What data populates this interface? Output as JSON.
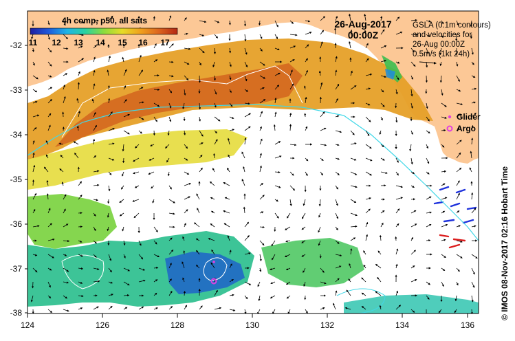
{
  "colorbar": {
    "title": "4h comp, p50, all sats",
    "ticks": [
      "11",
      "12",
      "13",
      "14",
      "15",
      "16",
      "17"
    ],
    "colors": [
      "#1e1ea0",
      "#1e5adc",
      "#1eb4e6",
      "#28d2a0",
      "#8cdc3c",
      "#e6dc28",
      "#f0a01e",
      "#dc641e",
      "#b42814"
    ]
  },
  "timestamp": {
    "date": "26-Aug-2017",
    "time": "00:00Z"
  },
  "gsla_note": {
    "lines": [
      "GSLA (0.1m contours)",
      "and velocities for",
      "26-Aug 00:00Z",
      "0.5m/s (1kt 24h)"
    ]
  },
  "legend": {
    "glider": {
      "label": "Glider",
      "color": "#e040e0"
    },
    "argo": {
      "label": "Argo",
      "color": "#e040e0"
    }
  },
  "credit": "© IMOS 08-Nov-2017 02:16 Hobart Time",
  "axes": {
    "x_ticks": [
      "124",
      "126",
      "128",
      "130",
      "132",
      "134",
      "136"
    ],
    "y_ticks": [
      "-32",
      "-33",
      "-34",
      "-35",
      "-36",
      "-37",
      "-38"
    ]
  },
  "colors": {
    "land": "#fcc896",
    "ocean": "#ffffff",
    "contour_cyan": "#40d8e8",
    "contour_white": "#ffffff"
  }
}
